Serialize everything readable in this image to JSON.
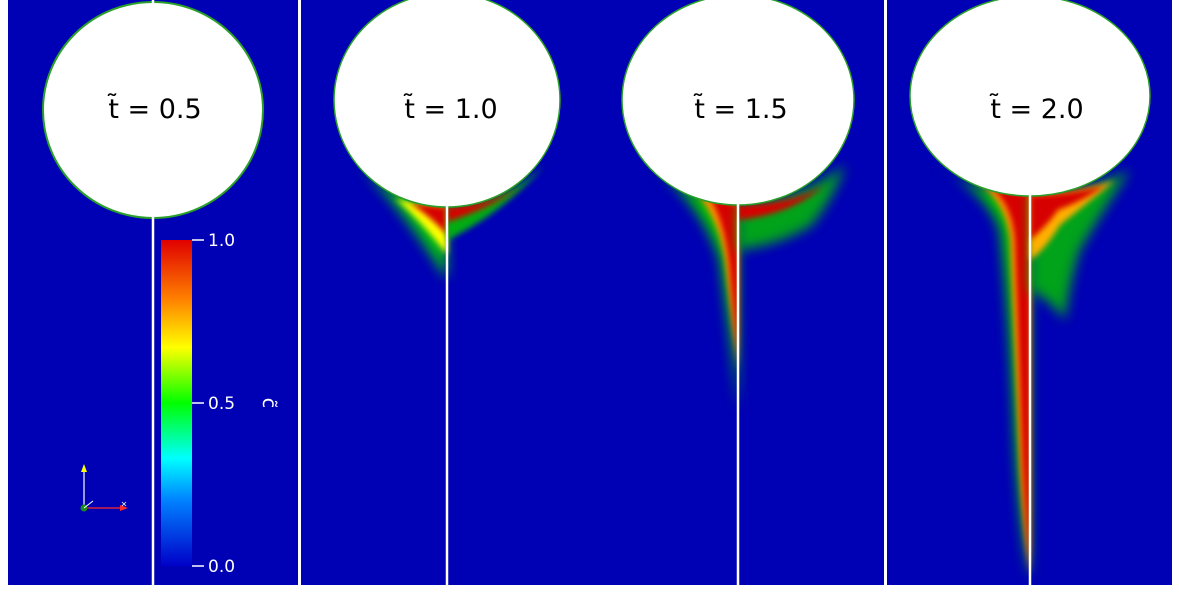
{
  "panels": [
    {
      "time_label": "t̃ = 0.5"
    },
    {
      "time_label": "t̃ = 1.0"
    },
    {
      "time_label": "t̃ = 1.5"
    },
    {
      "time_label": "t̃ = 2.0"
    }
  ],
  "colorbar": {
    "title": "c̃",
    "tick_labels": [
      "1.0",
      "0.5",
      "0.0"
    ],
    "colormap": "rainbow",
    "range": [
      0.0,
      1.0
    ]
  },
  "colors": {
    "background": "#0000b4",
    "high": "#d60000",
    "bubble": "#ffffff",
    "divider": "#ffffff"
  },
  "axes_glyph": {
    "x_color": "#ff2a2a",
    "y_color": "#ffff00",
    "z_color": "#1a8a1a"
  }
}
